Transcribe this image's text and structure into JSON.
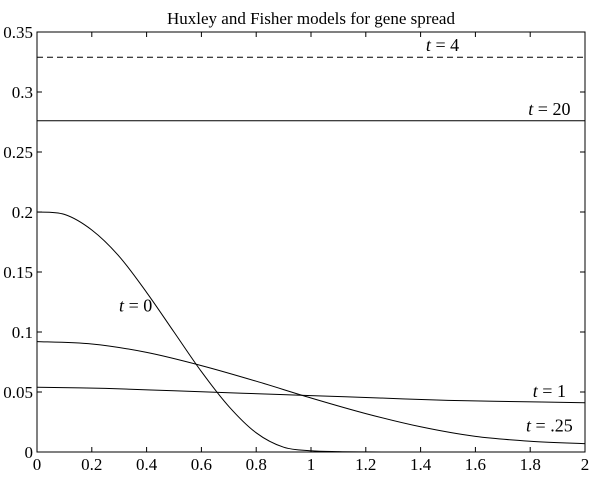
{
  "chart_data": {
    "type": "line",
    "title": "Huxley and Fisher models for gene spread",
    "xlabel": "",
    "ylabel": "",
    "xlim": [
      0,
      2
    ],
    "ylim": [
      0,
      0.35
    ],
    "grid": false,
    "x_ticks": [
      0,
      0.2,
      0.4,
      0.6,
      0.8,
      1,
      1.2,
      1.4,
      1.6,
      1.8,
      2
    ],
    "x_tick_labels": [
      "0",
      "0.2",
      "0.4",
      "0.6",
      "0.8",
      "1",
      "1.2",
      "1.4",
      "1.6",
      "1.8",
      "2"
    ],
    "y_ticks": [
      0,
      0.05,
      0.1,
      0.15,
      0.2,
      0.25,
      0.3,
      0.35
    ],
    "y_tick_labels": [
      "0",
      "0.05",
      "0.1",
      "0.15",
      "0.2",
      "0.25",
      "0.3",
      "0.35"
    ],
    "series": [
      {
        "name": "t = 0",
        "style": "solid",
        "x": [
          0,
          0.1,
          0.2,
          0.3,
          0.4,
          0.5,
          0.6,
          0.7,
          0.8,
          0.9,
          1.0,
          1.1,
          1.2,
          1.3,
          1.4
        ],
        "y": [
          0.2,
          0.198,
          0.185,
          0.163,
          0.133,
          0.1,
          0.067,
          0.038,
          0.016,
          0.004,
          0.001,
          0.0003,
          0.0001,
          0,
          0
        ]
      },
      {
        "name": "t = .25",
        "style": "solid",
        "x": [
          0,
          0.2,
          0.4,
          0.6,
          0.8,
          1.0,
          1.2,
          1.4,
          1.6,
          1.8,
          2.0
        ],
        "y": [
          0.092,
          0.09,
          0.083,
          0.072,
          0.059,
          0.045,
          0.032,
          0.021,
          0.013,
          0.009,
          0.007
        ]
      },
      {
        "name": "t = 1",
        "style": "solid",
        "x": [
          0,
          0.25,
          0.5,
          0.75,
          1.0,
          1.25,
          1.5,
          1.75,
          2.0
        ],
        "y": [
          0.054,
          0.053,
          0.051,
          0.049,
          0.047,
          0.045,
          0.043,
          0.042,
          0.041
        ]
      },
      {
        "name": "t = 4",
        "style": "dashed",
        "x": [
          0,
          2
        ],
        "y": [
          0.329,
          0.329
        ]
      },
      {
        "name": "t = 20",
        "style": "solid",
        "x": [
          0,
          2
        ],
        "y": [
          0.276,
          0.276
        ]
      }
    ],
    "annotations": [
      {
        "text": "t = 4",
        "x": 1.48,
        "y": 0.334
      },
      {
        "text": "t = 20",
        "x": 1.87,
        "y": 0.281
      },
      {
        "text": "t = 0",
        "x": 0.36,
        "y": 0.117
      },
      {
        "text": "t = 1",
        "x": 1.87,
        "y": 0.046
      },
      {
        "text": "t = .25",
        "x": 1.87,
        "y": 0.017
      }
    ]
  }
}
